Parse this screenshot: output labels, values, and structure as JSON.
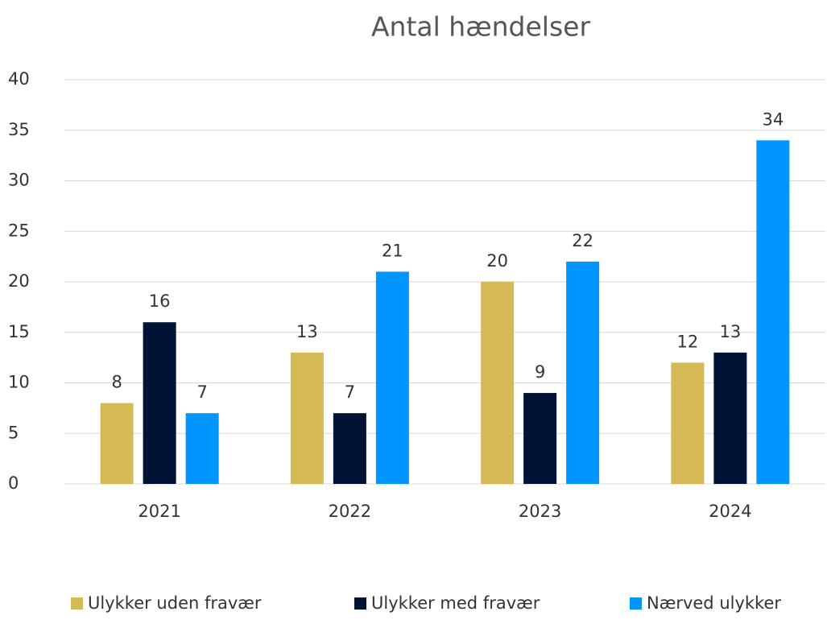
{
  "chart_data": {
    "type": "bar",
    "title": "Antal hændelser",
    "categories": [
      "2021",
      "2022",
      "2023",
      "2024"
    ],
    "series": [
      {
        "name": "Ulykker uden fravær",
        "color": "#d4b954",
        "values": [
          8,
          13,
          20,
          12
        ]
      },
      {
        "name": "Ulykker med fravær",
        "color": "#001235",
        "values": [
          16,
          7,
          9,
          13
        ]
      },
      {
        "name": "Nærved ulykker",
        "color": "#0095ff",
        "values": [
          7,
          21,
          22,
          34
        ]
      }
    ],
    "ylim": [
      0,
      40
    ],
    "yticks": [
      0,
      5,
      10,
      15,
      20,
      25,
      30,
      35,
      40
    ],
    "grid": true,
    "legend": "bottom"
  }
}
